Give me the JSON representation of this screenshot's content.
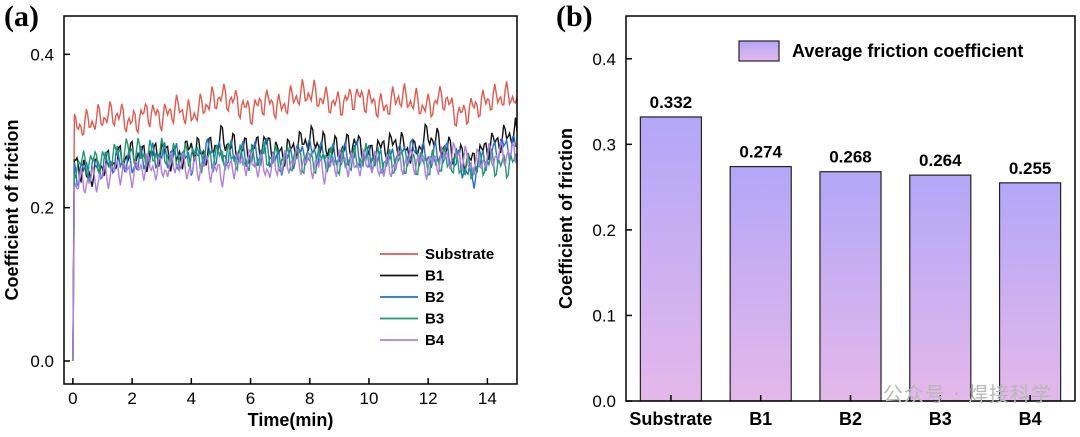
{
  "panel_a_label": "(a)",
  "panel_b_label": "(b)",
  "watermark": "公众号 · 焊接科学",
  "chart_data": [
    {
      "type": "line",
      "title": "",
      "xlabel": "Time(min)",
      "ylabel": "Coefficient of friction",
      "xlim": [
        -0.3,
        15
      ],
      "ylim": [
        -0.03,
        0.45
      ],
      "xticks": [
        0,
        2,
        4,
        6,
        8,
        10,
        12,
        14
      ],
      "yticks": [
        0.0,
        0.2,
        0.4
      ],
      "ytick_labels": [
        "0.0",
        "0.2",
        "0.4"
      ],
      "legend_position": "bottom-right",
      "series": [
        {
          "name": "Substrate",
          "color": "#e05a4f",
          "x": [
            0,
            0.05,
            0.5,
            1,
            1.5,
            2,
            2.5,
            3,
            3.5,
            4,
            4.5,
            5,
            5.5,
            6,
            6.5,
            7,
            7.5,
            8,
            8.5,
            9,
            9.5,
            10,
            10.5,
            11,
            11.5,
            12,
            12.5,
            13,
            13.5,
            14,
            14.5,
            15
          ],
          "y": [
            0.0,
            0.305,
            0.31,
            0.318,
            0.322,
            0.31,
            0.325,
            0.318,
            0.33,
            0.32,
            0.335,
            0.345,
            0.338,
            0.325,
            0.34,
            0.33,
            0.345,
            0.35,
            0.34,
            0.335,
            0.345,
            0.34,
            0.33,
            0.345,
            0.338,
            0.33,
            0.345,
            0.32,
            0.33,
            0.34,
            0.345,
            0.345
          ]
        },
        {
          "name": "B1",
          "color": "#111111",
          "x": [
            0,
            0.05,
            0.5,
            1,
            1.5,
            2,
            2.5,
            3,
            3.5,
            4,
            4.5,
            5,
            5.5,
            6,
            6.5,
            7,
            7.5,
            8,
            8.5,
            9,
            9.5,
            10,
            10.5,
            11,
            11.5,
            12,
            12.5,
            13,
            13.5,
            14,
            14.5,
            15
          ],
          "y": [
            0.0,
            0.262,
            0.24,
            0.255,
            0.262,
            0.27,
            0.265,
            0.275,
            0.262,
            0.28,
            0.27,
            0.29,
            0.278,
            0.275,
            0.285,
            0.27,
            0.28,
            0.29,
            0.28,
            0.275,
            0.285,
            0.27,
            0.28,
            0.285,
            0.27,
            0.295,
            0.28,
            0.27,
            0.26,
            0.28,
            0.29,
            0.3
          ]
        },
        {
          "name": "B2",
          "color": "#2a6fc4",
          "x": [
            0,
            0.05,
            0.5,
            1,
            1.5,
            2,
            2.5,
            3,
            3.5,
            4,
            4.5,
            5,
            5.5,
            6,
            6.5,
            7,
            7.5,
            8,
            8.5,
            9,
            9.5,
            10,
            10.5,
            11,
            11.5,
            12,
            12.5,
            13,
            13.5,
            14,
            14.5,
            15
          ],
          "y": [
            0.0,
            0.245,
            0.25,
            0.255,
            0.262,
            0.255,
            0.265,
            0.268,
            0.27,
            0.26,
            0.275,
            0.268,
            0.27,
            0.265,
            0.275,
            0.26,
            0.27,
            0.275,
            0.268,
            0.265,
            0.27,
            0.265,
            0.26,
            0.27,
            0.275,
            0.265,
            0.27,
            0.26,
            0.24,
            0.27,
            0.28,
            0.28
          ]
        },
        {
          "name": "B3",
          "color": "#1f9a6a",
          "x": [
            0,
            0.05,
            0.5,
            1,
            1.5,
            2,
            2.5,
            3,
            3.5,
            4,
            4.5,
            5,
            5.5,
            6,
            6.5,
            7,
            7.5,
            8,
            8.5,
            9,
            9.5,
            10,
            10.5,
            11,
            11.5,
            12,
            12.5,
            13,
            13.5,
            14,
            14.5,
            15
          ],
          "y": [
            0.0,
            0.255,
            0.26,
            0.262,
            0.27,
            0.275,
            0.268,
            0.272,
            0.265,
            0.27,
            0.262,
            0.27,
            0.265,
            0.26,
            0.268,
            0.262,
            0.265,
            0.26,
            0.265,
            0.258,
            0.262,
            0.265,
            0.258,
            0.262,
            0.26,
            0.258,
            0.262,
            0.255,
            0.25,
            0.26,
            0.255,
            0.26
          ]
        },
        {
          "name": "B4",
          "color": "#b07fe0",
          "x": [
            0,
            0.05,
            0.5,
            1,
            1.5,
            2,
            2.5,
            3,
            3.5,
            4,
            4.5,
            5,
            5.5,
            6,
            6.5,
            7,
            7.5,
            8,
            8.5,
            9,
            9.5,
            10,
            10.5,
            11,
            11.5,
            12,
            12.5,
            13,
            13.5,
            14,
            14.5,
            15
          ],
          "y": [
            0.0,
            0.23,
            0.235,
            0.24,
            0.25,
            0.245,
            0.255,
            0.248,
            0.258,
            0.25,
            0.255,
            0.245,
            0.258,
            0.26,
            0.25,
            0.255,
            0.262,
            0.258,
            0.25,
            0.262,
            0.255,
            0.26,
            0.25,
            0.258,
            0.262,
            0.255,
            0.265,
            0.27,
            0.255,
            0.265,
            0.27,
            0.27
          ]
        }
      ]
    },
    {
      "type": "bar",
      "title": "",
      "xlabel": "",
      "ylabel": "Coefficient of friction",
      "ylim": [
        0,
        0.45
      ],
      "yticks": [
        0.0,
        0.1,
        0.2,
        0.3,
        0.4
      ],
      "ytick_labels": [
        "0.0",
        "0.1",
        "0.2",
        "0.3",
        "0.4"
      ],
      "categories": [
        "Substrate",
        "B1",
        "B2",
        "B3",
        "B4"
      ],
      "values": [
        0.332,
        0.274,
        0.268,
        0.264,
        0.255
      ],
      "value_labels": [
        "0.332",
        "0.274",
        "0.268",
        "0.264",
        "0.255"
      ],
      "legend": "Average friction coefficient",
      "legend_position": "top-right",
      "bar_color_top": "#b2a7f7",
      "bar_color_bottom": "#e4b7ea"
    }
  ]
}
